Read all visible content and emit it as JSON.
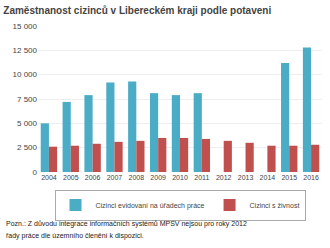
{
  "chart_data": {
    "type": "bar",
    "title": "Zaměstnanost cizinců v Libereckém kraji podle potaveni",
    "categories": [
      "2004",
      "2005",
      "2006",
      "2007",
      "2008",
      "2009",
      "2010",
      "2011",
      "2012",
      "2013",
      "2014",
      "2015",
      "2016"
    ],
    "series": [
      {
        "name": "Cizinci evidovaní na úřadech práce",
        "color": "#4BACC6",
        "values": [
          5000,
          7200,
          7900,
          9200,
          9300,
          8100,
          7900,
          8100,
          0,
          0,
          0,
          11200,
          12800
        ]
      },
      {
        "name": "Cizinci s živnost",
        "color": "#C0504D",
        "values": [
          2600,
          2700,
          2900,
          3100,
          3200,
          3500,
          3500,
          3400,
          3200,
          3000,
          2700,
          2700,
          2800
        ]
      }
    ],
    "ylim": [
      0,
      15000
    ],
    "yticks": [
      0,
      {
        "value": 2500,
        "label": "2 500"
      },
      {
        "value": 5000,
        "label": "5 000"
      },
      {
        "value": 7500,
        "label": "7 500"
      },
      {
        "value": 10000,
        "label": "10 000"
      },
      {
        "value": 12500,
        "label": "12 500"
      },
      {
        "value": 15000,
        "label": "15 000"
      }
    ],
    "grid": true,
    "legend": "bottom",
    "annotations": [
      "Pozn.: Z důvodu integrace informačních systémů MPSV nejsou pro roky 2012",
      "řady práce dle územního členění k dispozici."
    ]
  }
}
